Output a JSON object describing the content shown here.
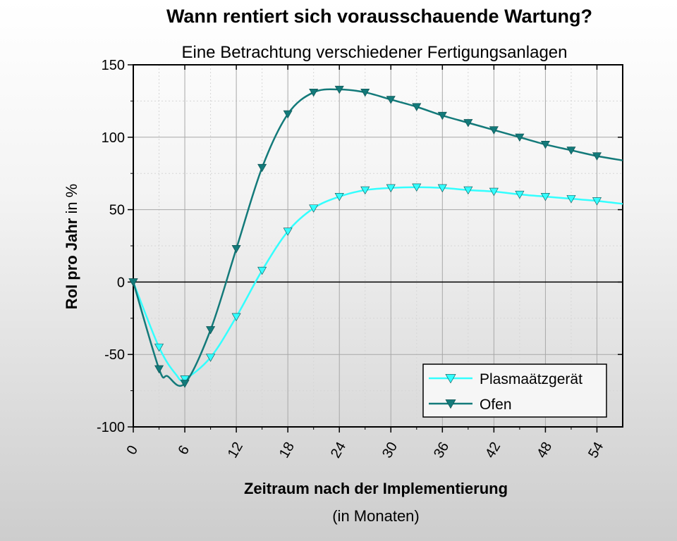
{
  "chart_data": {
    "type": "line",
    "title": "Wann rentiert sich vorausschauende Wartung?",
    "subtitle": "Eine Betrachtung verschiedener Fertigungsanlagen",
    "xlabel": "Zeitraum nach der Implementierung",
    "xlabel_sub": "(in Monaten)",
    "ylabel_bold": "RoI pro Jahr",
    "ylabel_plain": " in %",
    "xlim": [
      0,
      57
    ],
    "ylim": [
      -100,
      150
    ],
    "xticks": [
      "0",
      "6",
      "12",
      "18",
      "24",
      "30",
      "36",
      "42",
      "48",
      "54"
    ],
    "yticks": [
      "150",
      "100",
      "50",
      "0",
      "-50",
      "-100"
    ],
    "grid": true,
    "legend_position": "bottom-right",
    "series": [
      {
        "name": "Plasmaätzgerät",
        "color": "#33ffff",
        "marker": "triangle-down",
        "points": [
          [
            0,
            0
          ],
          [
            3,
            -45
          ],
          [
            5,
            -64
          ],
          [
            6,
            -67
          ],
          [
            9,
            -52
          ],
          [
            12,
            -24
          ],
          [
            15,
            8
          ],
          [
            18,
            35
          ],
          [
            21,
            51
          ],
          [
            24,
            59
          ],
          [
            27,
            63.5
          ],
          [
            30,
            65
          ],
          [
            33,
            65.5
          ],
          [
            36,
            65
          ],
          [
            39,
            63.5
          ],
          [
            42,
            62.5
          ],
          [
            45,
            60.5
          ],
          [
            48,
            59
          ],
          [
            51,
            57.5
          ],
          [
            54,
            56
          ],
          [
            57,
            54
          ]
        ]
      },
      {
        "name": "Ofen",
        "color": "#137a7a",
        "marker": "triangle-down",
        "points": [
          [
            0,
            0
          ],
          [
            3,
            -60
          ],
          [
            4,
            -65
          ],
          [
            6,
            -70
          ],
          [
            9,
            -33
          ],
          [
            12,
            23
          ],
          [
            15,
            79
          ],
          [
            18,
            116
          ],
          [
            21,
            131
          ],
          [
            24,
            133
          ],
          [
            27,
            131
          ],
          [
            30,
            126
          ],
          [
            33,
            121
          ],
          [
            36,
            115
          ],
          [
            39,
            110
          ],
          [
            42,
            105
          ],
          [
            45,
            100
          ],
          [
            48,
            95
          ],
          [
            51,
            91
          ],
          [
            54,
            87
          ],
          [
            57,
            84
          ]
        ]
      }
    ]
  }
}
